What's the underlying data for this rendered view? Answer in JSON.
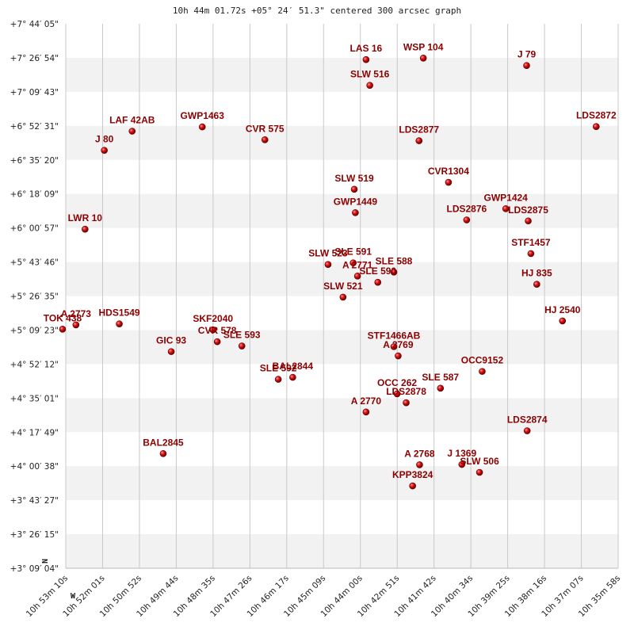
{
  "chart_data": {
    "type": "scatter",
    "title": "10h 44m 01.72s +05° 24′ 51.3\" centered 300 arcsec graph",
    "xlabel": "",
    "ylabel": "",
    "x_axis_letter": "W",
    "y_axis_letter": "N",
    "x_ticks": [
      "10h 53m 10s",
      "10h 52m 01s",
      "10h 50m 52s",
      "10h 49m 44s",
      "10h 48m 35s",
      "10h 47m 26s",
      "10h 46m 17s",
      "10h 45m 09s",
      "10h 44m 00s",
      "10h 42m 51s",
      "10h 41m 42s",
      "10h 40m 34s",
      "10h 39m 25s",
      "10h 38m 16s",
      "10h 37m 07s",
      "10h 35m 58s"
    ],
    "y_ticks": [
      "+7° 44′ 05\"",
      "+7° 26′ 54\"",
      "+7° 09′ 43\"",
      "+6° 52′ 31\"",
      "+6° 35′ 20\"",
      "+6° 18′ 09\"",
      "+6° 00′ 57\"",
      "+5° 43′ 46\"",
      "+5° 26′ 35\"",
      "+5° 09′ 23\"",
      "+4° 52′ 12\"",
      "+4° 35′ 01\"",
      "+4° 17′ 49\"",
      "+4° 00′ 38\"",
      "+3° 43′ 27\"",
      "+3° 26′ 15\"",
      "+3° 09′ 04\""
    ],
    "grid": true,
    "colors": {
      "point": "#cc0000",
      "label": "#8b0000",
      "band": "#f2f2f2",
      "grid": "#c8c8c8"
    },
    "points": [
      {
        "name": "LAS  16",
        "ra": "10h 43m 49s",
        "dec": "+7° 26′ 00\""
      },
      {
        "name": "WSP 104",
        "ra": "10h 42m 02s",
        "dec": "+7° 26′ 45\""
      },
      {
        "name": "J   79",
        "ra": "10h 38m 49s",
        "dec": "+7° 23′ 00\""
      },
      {
        "name": "SLW 516",
        "ra": "10h 43m 42s",
        "dec": "+7° 13′ 00\""
      },
      {
        "name": "LAF  42AB",
        "ra": "10h 51m 06s",
        "dec": "+6° 49′ 50\""
      },
      {
        "name": "GWP1463",
        "ra": "10h 48m 55s",
        "dec": "+6° 52′ 00\""
      },
      {
        "name": "LDS2872",
        "ra": "10h 36m 39s",
        "dec": "+6° 52′ 10\""
      },
      {
        "name": "CVR 575",
        "ra": "10h 46m 58s",
        "dec": "+6° 45′ 30\""
      },
      {
        "name": "LDS2877",
        "ra": "10h 42m 10s",
        "dec": "+6° 45′ 00\""
      },
      {
        "name": "J   80",
        "ra": "10h 51m 58s",
        "dec": "+6° 40′ 10\""
      },
      {
        "name": "CVR1304",
        "ra": "10h 41m 15s",
        "dec": "+6° 24′ 00\""
      },
      {
        "name": "SLW 519",
        "ra": "10h 44m 11s",
        "dec": "+6° 20′ 30\""
      },
      {
        "name": "GWP1424",
        "ra": "10h 39m 28s",
        "dec": "+6° 10′ 40\""
      },
      {
        "name": "GWP1449",
        "ra": "10h 44m 09s",
        "dec": "+6° 08′ 40\""
      },
      {
        "name": "LDS2876",
        "ra": "10h 40m 41s",
        "dec": "+6° 05′ 00\""
      },
      {
        "name": "LDS2875",
        "ra": "10h 38m 46s",
        "dec": "+6° 04′ 30\""
      },
      {
        "name": "LWR  10",
        "ra": "10h 52m 34s",
        "dec": "+6° 00′ 20\""
      },
      {
        "name": "STF1457",
        "ra": "10h 38m 41s",
        "dec": "+5° 48′ 00\""
      },
      {
        "name": "SLE 591",
        "ra": "10h 44m 13s",
        "dec": "+5° 43′ 20\""
      },
      {
        "name": "SLW 523",
        "ra": "10h 45m 00s",
        "dec": "+5° 42′ 30\""
      },
      {
        "name": "SLE 588",
        "ra": "10h 42m 57s",
        "dec": "+5° 38′ 40\""
      },
      {
        "name": "A  2771",
        "ra": "10h 44m 05s",
        "dec": "+5° 36′ 40\""
      },
      {
        "name": "SLE 590",
        "ra": "10h 43m 27s",
        "dec": "+5° 33′ 30\""
      },
      {
        "name": "HJ  835",
        "ra": "10h 38m 30s",
        "dec": "+5° 32′ 30\""
      },
      {
        "name": "SLW 521",
        "ra": "10h 44m 32s",
        "dec": "+5° 26′ 00\""
      },
      {
        "name": "HJ 2540",
        "ra": "10h 37m 42s",
        "dec": "+5° 14′ 00\""
      },
      {
        "name": "A  2773",
        "ra": "10h 52m 51s",
        "dec": "+5° 12′ 00\""
      },
      {
        "name": "TOK 438",
        "ra": "10h 53m 16s",
        "dec": "+5° 09′ 50\""
      },
      {
        "name": "HDS1549",
        "ra": "10h 51m 30s",
        "dec": "+5° 12′ 30\""
      },
      {
        "name": "SKF2040",
        "ra": "10h 48m 35s",
        "dec": "+5° 09′ 30\""
      },
      {
        "name": "CVR 578",
        "ra": "10h 48m 27s",
        "dec": "+5° 03′ 30\""
      },
      {
        "name": "SLE 593",
        "ra": "10h 47m 41s",
        "dec": "+5° 01′ 20\""
      },
      {
        "name": "GIC  93",
        "ra": "10h 49m 53s",
        "dec": "+4° 58′ 30\""
      },
      {
        "name": "STF1466AB",
        "ra": "10h 42m 57s",
        "dec": "+5° 01′ 00\""
      },
      {
        "name": "A  2769",
        "ra": "10h 42m 49s",
        "dec": "+4° 56′ 20\""
      },
      {
        "name": "OCC9152",
        "ra": "10h 40m 12s",
        "dec": "+4° 48′ 30\""
      },
      {
        "name": "SLE 592",
        "ra": "10h 46m 33s",
        "dec": "+4° 44′ 30\""
      },
      {
        "name": "BAL2844",
        "ra": "10h 46m 06s",
        "dec": "+4° 45′ 30\""
      },
      {
        "name": "OCC 262",
        "ra": "10h 42m 51s",
        "dec": "+4° 37′ 10\""
      },
      {
        "name": "SLE 587",
        "ra": "10h 41m 30s",
        "dec": "+4° 40′ 00\""
      },
      {
        "name": "LDS2878",
        "ra": "10h 42m 34s",
        "dec": "+4° 32′ 40\""
      },
      {
        "name": "A  2770",
        "ra": "10h 43m 49s",
        "dec": "+4° 28′ 00\""
      },
      {
        "name": "LDS2874",
        "ra": "10h 38m 48s",
        "dec": "+4° 18′ 30\""
      },
      {
        "name": "BAL2845",
        "ra": "10h 50m 08s",
        "dec": "+4° 07′ 00\""
      },
      {
        "name": "A  2768",
        "ra": "10h 42m 09s",
        "dec": "+4° 01′ 20\""
      },
      {
        "name": "J  1369",
        "ra": "10h 40m 50s",
        "dec": "+4° 01′ 30\""
      },
      {
        "name": "SLW 506",
        "ra": "10h 40m 17s",
        "dec": "+3° 57′ 30\""
      },
      {
        "name": "KPP3824",
        "ra": "10h 42m 22s",
        "dec": "+3° 50′ 40\""
      }
    ]
  }
}
